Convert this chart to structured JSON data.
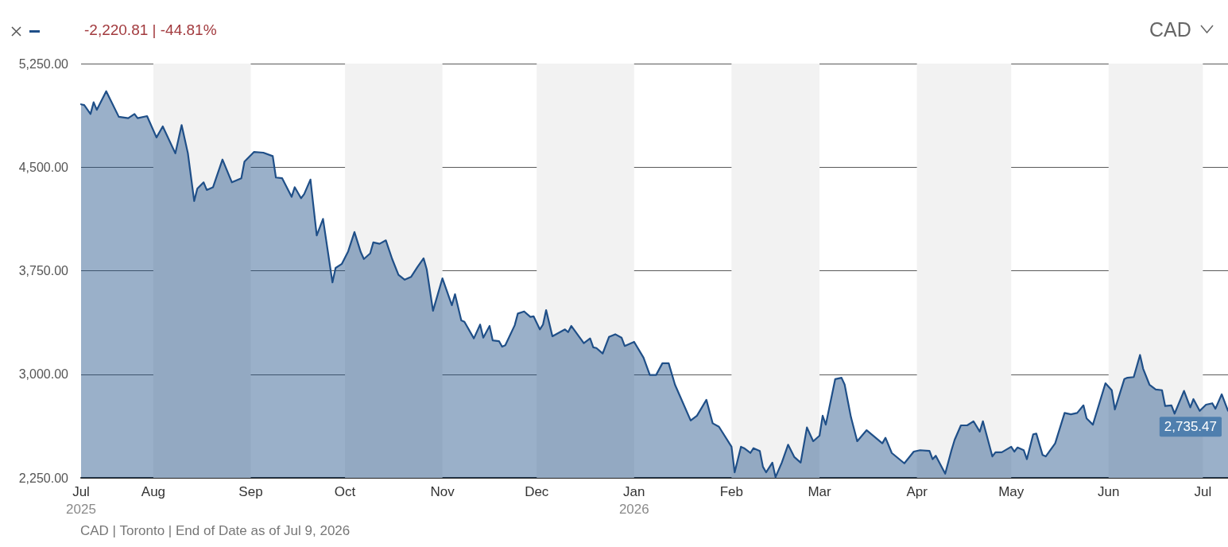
{
  "chart_data": {
    "type": "area",
    "annotations": [
      "-2,220.81 | -44.81%",
      "CAD",
      "CAD | Toronto | End of Date as of Jul 9, 2026"
    ],
    "x": [
      "2025-07-09",
      "2025-07-10",
      "2025-07-12",
      "2025-07-13",
      "2025-07-14",
      "2025-07-17",
      "2025-07-21",
      "2025-07-24",
      "2025-07-26",
      "2025-07-27",
      "2025-07-30",
      "2025-08-02",
      "2025-08-04",
      "2025-08-08",
      "2025-08-10",
      "2025-08-12",
      "2025-08-14",
      "2025-08-15",
      "2025-08-17",
      "2025-08-18",
      "2025-08-20",
      "2025-08-23",
      "2025-08-26",
      "2025-08-29",
      "2025-08-30",
      "2025-09-02",
      "2025-09-05",
      "2025-09-08",
      "2025-09-09",
      "2025-09-11",
      "2025-09-12",
      "2025-09-14",
      "2025-09-15",
      "2025-09-17",
      "2025-09-18",
      "2025-09-20",
      "2025-09-22",
      "2025-09-24",
      "2025-09-27",
      "2025-09-28",
      "2025-09-30",
      "2025-10-02",
      "2025-10-04",
      "2025-10-06",
      "2025-10-07",
      "2025-10-09",
      "2025-10-10",
      "2025-10-12",
      "2025-10-14",
      "2025-10-16",
      "2025-10-18",
      "2025-10-20",
      "2025-10-22",
      "2025-10-24",
      "2025-10-26",
      "2025-10-27",
      "2025-10-29",
      "2025-11-01",
      "2025-11-04",
      "2025-11-05",
      "2025-11-07",
      "2025-11-08",
      "2025-11-11",
      "2025-11-13",
      "2025-11-14",
      "2025-11-16",
      "2025-11-17",
      "2025-11-19",
      "2025-11-20",
      "2025-11-21",
      "2025-11-24",
      "2025-11-25",
      "2025-11-27",
      "2025-11-29",
      "2025-11-30",
      "2025-12-02",
      "2025-12-03",
      "2025-12-04",
      "2025-12-06",
      "2025-12-10",
      "2025-12-11",
      "2025-12-12",
      "2025-12-16",
      "2025-12-18",
      "2025-12-19",
      "2025-12-20",
      "2025-12-22",
      "2025-12-24",
      "2025-12-26",
      "2025-12-28",
      "2025-12-29",
      "2026-01-01",
      "2026-01-04",
      "2026-01-06",
      "2026-01-08",
      "2026-01-10",
      "2026-01-12",
      "2026-01-14",
      "2026-01-19",
      "2026-01-21",
      "2026-01-24",
      "2026-01-26",
      "2026-01-28",
      "2026-02-01",
      "2026-02-02",
      "2026-02-04",
      "2026-02-05",
      "2026-02-07",
      "2026-02-08",
      "2026-02-10",
      "2026-02-11",
      "2026-02-12",
      "2026-02-14",
      "2026-02-15",
      "2026-02-17",
      "2026-02-19",
      "2026-02-21",
      "2026-02-23",
      "2026-02-25",
      "2026-02-27",
      "2026-03-01",
      "2026-03-02",
      "2026-03-03",
      "2026-03-06",
      "2026-03-08",
      "2026-03-09",
      "2026-03-11",
      "2026-03-13",
      "2026-03-16",
      "2026-03-21",
      "2026-03-22",
      "2026-03-24",
      "2026-03-28",
      "2026-03-31",
      "2026-04-02",
      "2026-04-05",
      "2026-04-06",
      "2026-04-07",
      "2026-04-10",
      "2026-04-12",
      "2026-04-13",
      "2026-04-15",
      "2026-04-17",
      "2026-04-19",
      "2026-04-21",
      "2026-04-22",
      "2026-04-24",
      "2026-04-25",
      "2026-04-26",
      "2026-04-28",
      "2026-05-01",
      "2026-05-02",
      "2026-05-03",
      "2026-05-05",
      "2026-05-06",
      "2026-05-08",
      "2026-05-09",
      "2026-05-11",
      "2026-05-12",
      "2026-05-15",
      "2026-05-18",
      "2026-05-20",
      "2026-05-22",
      "2026-05-24",
      "2026-05-25",
      "2026-05-27",
      "2026-05-31",
      "2026-06-02",
      "2026-06-03",
      "2026-06-06",
      "2026-06-07",
      "2026-06-09",
      "2026-06-11",
      "2026-06-12",
      "2026-06-14",
      "2026-06-16",
      "2026-06-18",
      "2026-06-19",
      "2026-06-21",
      "2026-06-22",
      "2026-06-25",
      "2026-06-27",
      "2026-06-28",
      "2026-06-30",
      "2026-07-02",
      "2026-07-04",
      "2026-07-05",
      "2026-07-07",
      "2026-07-09"
    ],
    "values": [
      4955,
      4950,
      4885,
      4970,
      4915,
      5050,
      4865,
      4855,
      4885,
      4855,
      4870,
      4715,
      4795,
      4600,
      4805,
      4600,
      4255,
      4345,
      4390,
      4335,
      4355,
      4555,
      4390,
      4420,
      4540,
      4610,
      4605,
      4580,
      4425,
      4420,
      4375,
      4285,
      4355,
      4275,
      4305,
      4410,
      4005,
      4125,
      3665,
      3770,
      3800,
      3890,
      4030,
      3885,
      3835,
      3875,
      3955,
      3945,
      3970,
      3835,
      3720,
      3685,
      3705,
      3775,
      3840,
      3760,
      3460,
      3695,
      3500,
      3580,
      3390,
      3380,
      3260,
      3360,
      3265,
      3350,
      3245,
      3240,
      3200,
      3210,
      3355,
      3440,
      3455,
      3415,
      3420,
      3325,
      3360,
      3465,
      3275,
      3325,
      3305,
      3350,
      3225,
      3260,
      3195,
      3190,
      3150,
      3270,
      3290,
      3265,
      3205,
      3235,
      3120,
      2995,
      2995,
      3080,
      3080,
      2925,
      2665,
      2700,
      2815,
      2645,
      2620,
      2475,
      2290,
      2475,
      2465,
      2430,
      2465,
      2445,
      2330,
      2290,
      2360,
      2255,
      2360,
      2490,
      2400,
      2360,
      2615,
      2515,
      2555,
      2700,
      2635,
      2965,
      2975,
      2925,
      2690,
      2515,
      2595,
      2500,
      2540,
      2430,
      2355,
      2440,
      2450,
      2445,
      2385,
      2410,
      2280,
      2450,
      2525,
      2630,
      2630,
      2660,
      2585,
      2660,
      2490,
      2405,
      2435,
      2435,
      2475,
      2440,
      2470,
      2450,
      2385,
      2565,
      2570,
      2415,
      2405,
      2500,
      2720,
      2710,
      2720,
      2775,
      2680,
      2635,
      2935,
      2885,
      2745,
      2965,
      2975,
      2980,
      3140,
      3040,
      2925,
      2890,
      2885,
      2770,
      2775,
      2715,
      2880,
      2760,
      2820,
      2735,
      2780,
      2790,
      2750,
      2855,
      2735.47
    ],
    "value_labels": [
      null,
      null,
      null,
      null,
      null,
      null,
      null,
      null,
      null,
      null,
      null,
      null,
      null,
      null,
      null,
      null,
      null,
      null,
      null,
      null,
      null,
      null,
      null,
      null,
      null,
      null,
      null,
      null,
      null,
      null,
      null,
      null,
      null,
      null,
      null,
      null,
      null,
      null,
      null,
      null,
      null,
      null,
      null,
      null,
      null,
      null,
      null,
      null,
      null,
      null,
      null,
      null,
      null,
      null,
      null,
      null,
      null,
      null,
      null,
      null,
      null,
      null,
      null,
      null,
      null,
      null,
      null,
      null,
      null,
      null,
      null,
      null,
      null,
      null,
      null,
      null,
      null,
      null,
      null,
      null,
      null,
      null,
      null,
      null,
      null,
      null,
      null,
      null,
      null,
      null,
      null,
      null,
      null,
      null,
      null,
      null,
      null,
      null,
      null,
      null,
      null,
      null,
      null,
      null,
      null,
      null,
      null,
      null,
      null,
      null,
      null,
      null,
      null,
      null,
      null,
      null,
      null,
      null,
      null,
      null,
      null,
      null,
      null,
      null,
      null,
      null,
      null,
      null,
      null,
      null,
      null,
      null,
      null,
      null,
      null,
      null,
      null,
      null,
      null,
      null,
      null,
      null,
      null,
      null,
      null,
      null,
      null,
      null,
      null,
      null,
      null,
      null,
      null,
      null,
      null,
      null,
      null,
      null,
      null,
      null,
      null,
      null,
      null,
      null,
      null,
      null,
      null,
      null,
      null,
      null,
      null,
      null,
      null,
      null,
      null,
      null,
      null,
      null,
      null,
      null,
      null,
      null,
      null,
      null,
      null,
      null,
      null,
      null,
      "2,735.47"
    ],
    "color": "#1f4f88",
    "xlim": [
      "2025-07-09",
      "2026-07-09"
    ],
    "xticks": [
      {
        "value": "2025-07-09",
        "label": "Jul\n2025"
      },
      {
        "value": "2025-08-01",
        "label": "Aug"
      },
      {
        "value": "2025-09-01",
        "label": "Sep"
      },
      {
        "value": "2025-10-01",
        "label": "Oct"
      },
      {
        "value": "2025-11-01",
        "label": "Nov"
      },
      {
        "value": "2025-12-01",
        "label": "Dec"
      },
      {
        "value": "2026-01-01",
        "label": "Jan\n2026"
      },
      {
        "value": "2026-02-01",
        "label": "Feb"
      },
      {
        "value": "2026-03-01",
        "label": "Mar"
      },
      {
        "value": "2026-04-01",
        "label": "Apr"
      },
      {
        "value": "2026-05-01",
        "label": "May"
      },
      {
        "value": "2026-06-01",
        "label": "Jun"
      },
      {
        "value": "2026-07-01",
        "label": "Jul"
      }
    ],
    "ylim": [
      2250,
      5250
    ],
    "yticks": [
      {
        "value": 2250,
        "label": "2,250.00"
      },
      {
        "value": 3000,
        "label": "3,000.00"
      },
      {
        "value": 3750,
        "label": "3,750.00"
      },
      {
        "value": 4500,
        "label": "4,500.00"
      },
      {
        "value": 5250,
        "label": "5,250.00"
      }
    ],
    "bands": [
      {
        "axis": "x",
        "from": "2025-08-01",
        "to": "2025-09-01",
        "color": "#f2f2f2"
      },
      {
        "axis": "x",
        "from": "2025-10-01",
        "to": "2025-11-01",
        "color": "#f2f2f2"
      },
      {
        "axis": "x",
        "from": "2025-12-01",
        "to": "2026-01-01",
        "color": "#f2f2f2"
      },
      {
        "axis": "x",
        "from": "2026-02-01",
        "to": "2026-03-01",
        "color": "#f2f2f2"
      },
      {
        "axis": "x",
        "from": "2026-04-01",
        "to": "2026-05-01",
        "color": "#f2f2f2"
      },
      {
        "axis": "x",
        "from": "2026-06-01",
        "to": "2026-07-01",
        "color": "#f2f2f2"
      }
    ],
    "grid": "y",
    "marker": "none"
  }
}
